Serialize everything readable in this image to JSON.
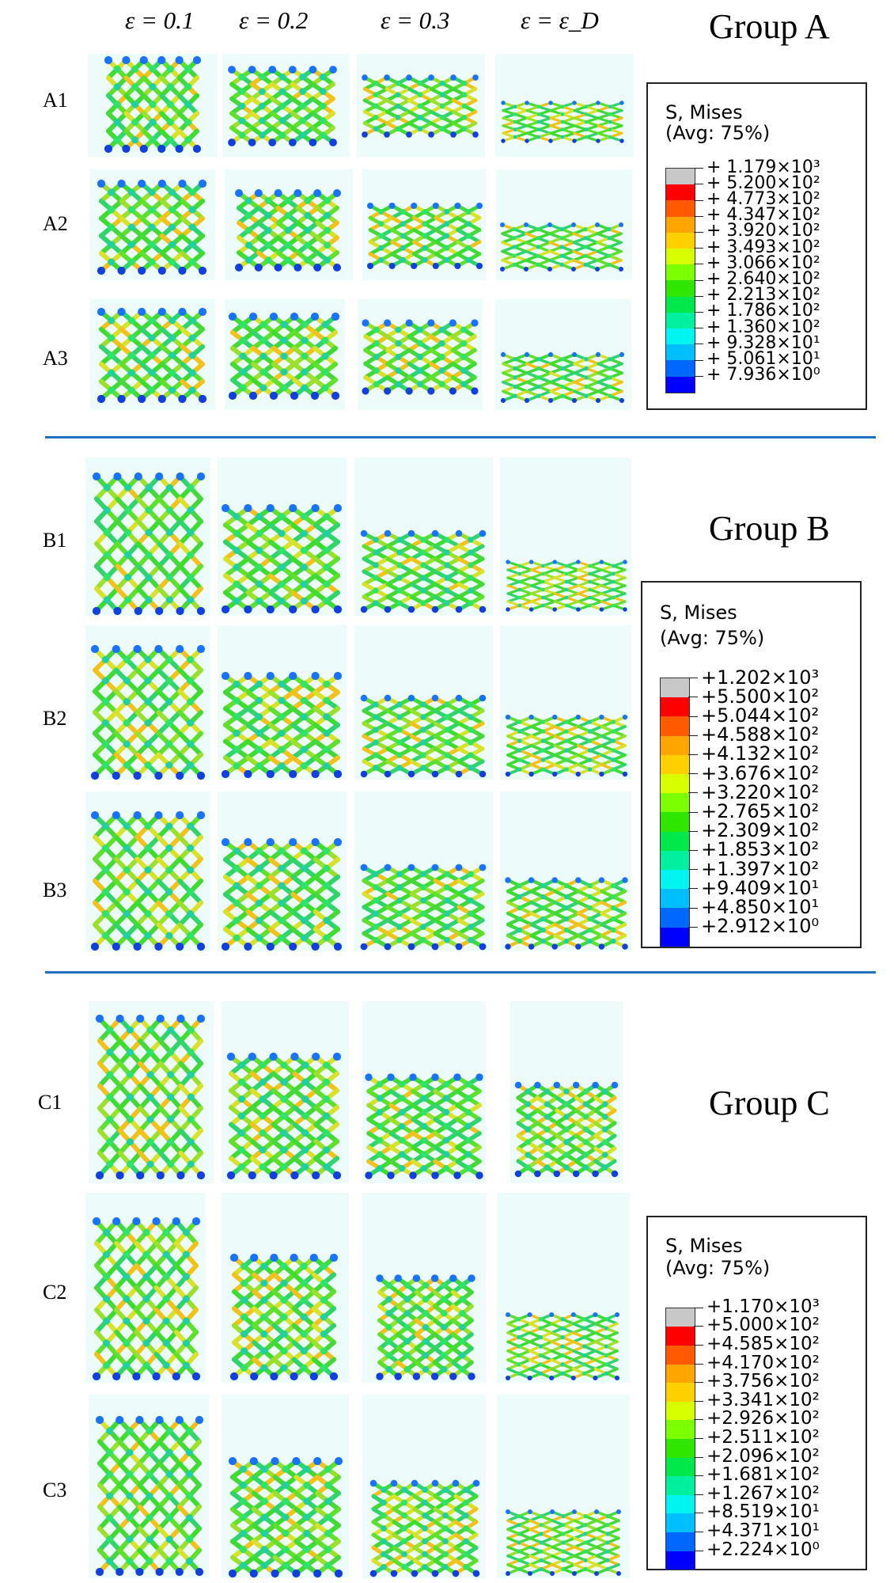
{
  "column_labels": [
    "ε = 0.1",
    "ε = 0.2",
    "ε = 0.3",
    "ε = ε_D"
  ],
  "groups": [
    {
      "title": "Group A",
      "rows": [
        "A1",
        "A2",
        "A3"
      ],
      "legend": {
        "title": "S, Mises",
        "subtitle": "(Avg: 75%)",
        "values": [
          "+ 1.179×10³",
          "+ 5.200×10²",
          "+ 4.773×10²",
          "+ 4.347×10²",
          "+ 3.920×10²",
          "+ 3.493×10²",
          "+ 3.066×10²",
          "+ 2.640×10²",
          "+ 2.213×10²",
          "+ 1.786×10²",
          "+ 1.360×10²",
          "+ 9.328×10¹",
          "+ 5.061×10¹",
          "+ 7.936×10⁰"
        ]
      }
    },
    {
      "title": "Group B",
      "rows": [
        "B1",
        "B2",
        "B3"
      ],
      "legend": {
        "title": "S, Mises",
        "subtitle": "(Avg: 75%)",
        "values": [
          "+1.202×10³",
          "+5.500×10²",
          "+5.044×10²",
          "+4.588×10²",
          "+4.132×10²",
          "+3.676×10²",
          "+3.220×10²",
          "+2.765×10²",
          "+2.309×10²",
          "+1.853×10²",
          "+1.397×10²",
          "+9.409×10¹",
          "+4.850×10¹",
          "+2.912×10⁰"
        ]
      }
    },
    {
      "title": "Group C",
      "rows": [
        "C1",
        "C2",
        "C3"
      ],
      "legend": {
        "title": "S, Mises",
        "subtitle": "(Avg: 75%)",
        "values": [
          "+1.170×10³",
          "+5.000×10²",
          "+4.585×10²",
          "+4.170×10²",
          "+3.756×10²",
          "+3.341×10²",
          "+2.926×10²",
          "+2.511×10²",
          "+2.096×10²",
          "+1.681×10²",
          "+1.267×10²",
          "+8.519×10¹",
          "+4.371×10¹",
          "+2.224×10⁰"
        ]
      }
    }
  ],
  "colorbar": [
    "#c8c8c8",
    "#ff0000",
    "#ff5a00",
    "#ffa500",
    "#ffd000",
    "#d8ff00",
    "#7cff00",
    "#2ee600",
    "#00e84a",
    "#00f0a0",
    "#00f5f0",
    "#00bfff",
    "#0068ff",
    "#0000ff"
  ]
}
